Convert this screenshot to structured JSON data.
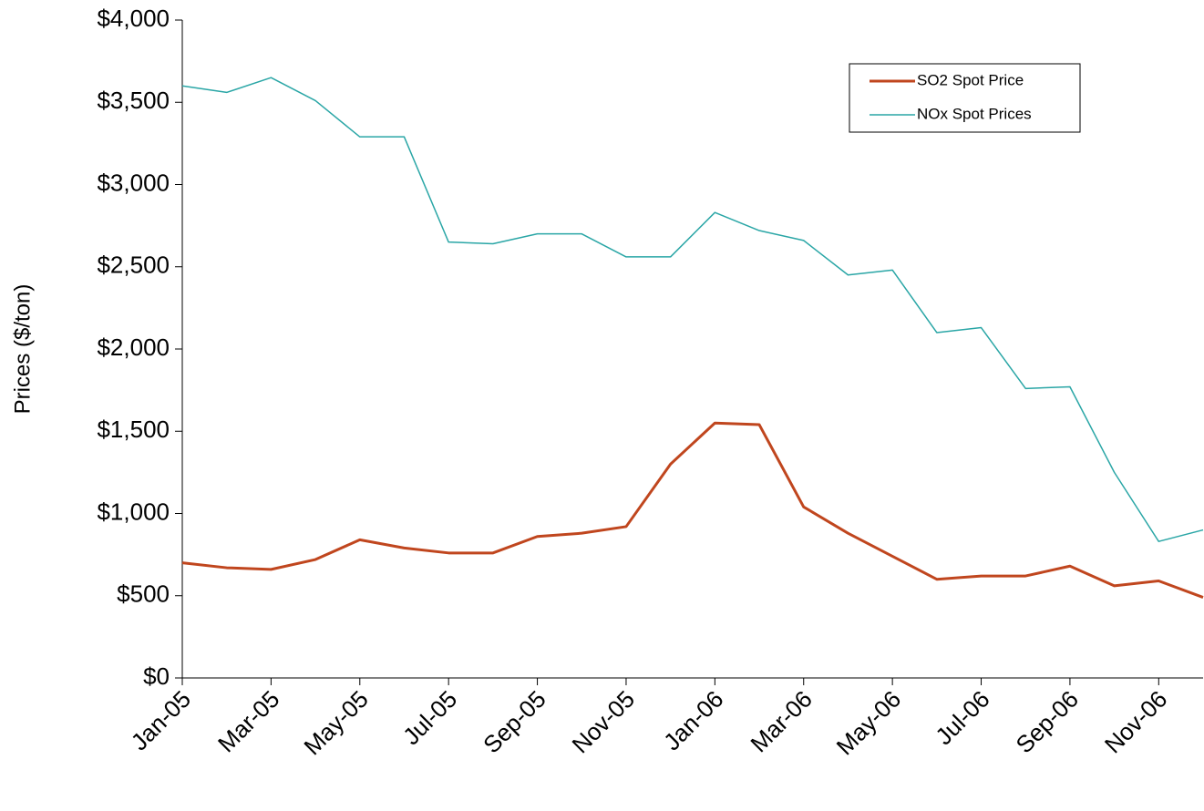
{
  "chart_data": {
    "type": "line",
    "y_label": "Prices ($/ton)",
    "x": [
      "2005-01",
      "2005-02",
      "2005-03",
      "2005-04",
      "2005-05",
      "2005-06",
      "2005-07",
      "2005-08",
      "2005-09",
      "2005-10",
      "2005-11",
      "2005-12",
      "2006-01",
      "2006-02",
      "2006-03",
      "2006-04",
      "2006-05",
      "2006-06",
      "2006-07",
      "2006-08",
      "2006-09",
      "2006-10",
      "2006-11",
      "2006-12"
    ],
    "series": [
      {
        "name": "SO2 Spot Price",
        "color": "#c0461e",
        "width": 3,
        "values": [
          700,
          670,
          660,
          720,
          840,
          790,
          760,
          760,
          860,
          880,
          920,
          1300,
          1550,
          1540,
          1040,
          880,
          740,
          600,
          620,
          620,
          680,
          560,
          590,
          490
        ]
      },
      {
        "name": "NOx Spot Prices",
        "color": "#2aa6a6",
        "width": 1.5,
        "values": [
          3600,
          3560,
          3650,
          3510,
          3290,
          3290,
          2650,
          2640,
          2700,
          2700,
          2560,
          2560,
          2830,
          2720,
          2660,
          2450,
          2480,
          2100,
          2130,
          1760,
          1770,
          1250,
          830,
          900
        ]
      }
    ],
    "xlim": [
      "2005-01",
      "2006-12"
    ],
    "xticks": [
      {
        "value": "2005-01",
        "label": "Jan-05"
      },
      {
        "value": "2005-03",
        "label": "Mar-05"
      },
      {
        "value": "2005-05",
        "label": "May-05"
      },
      {
        "value": "2005-07",
        "label": "Jul-05"
      },
      {
        "value": "2005-09",
        "label": "Sep-05"
      },
      {
        "value": "2005-11",
        "label": "Nov-05"
      },
      {
        "value": "2006-01",
        "label": "Jan-06"
      },
      {
        "value": "2006-03",
        "label": "Mar-06"
      },
      {
        "value": "2006-05",
        "label": "May-06"
      },
      {
        "value": "2006-07",
        "label": "Jul-06"
      },
      {
        "value": "2006-09",
        "label": "Sep-06"
      },
      {
        "value": "2006-11",
        "label": "Nov-06"
      }
    ],
    "ylim": [
      0,
      4000
    ],
    "yticks": [
      {
        "value": 0,
        "label": "$0"
      },
      {
        "value": 500,
        "label": "$500"
      },
      {
        "value": 1000,
        "label": "$1,000"
      },
      {
        "value": 1500,
        "label": "$1,500"
      },
      {
        "value": 2000,
        "label": "$2,000"
      },
      {
        "value": 2500,
        "label": "$2,500"
      },
      {
        "value": 3000,
        "label": "$3,000"
      },
      {
        "value": 3500,
        "label": "$3,500"
      },
      {
        "value": 4000,
        "label": "$4,000"
      }
    ],
    "grid": false,
    "legend": "top-right"
  }
}
